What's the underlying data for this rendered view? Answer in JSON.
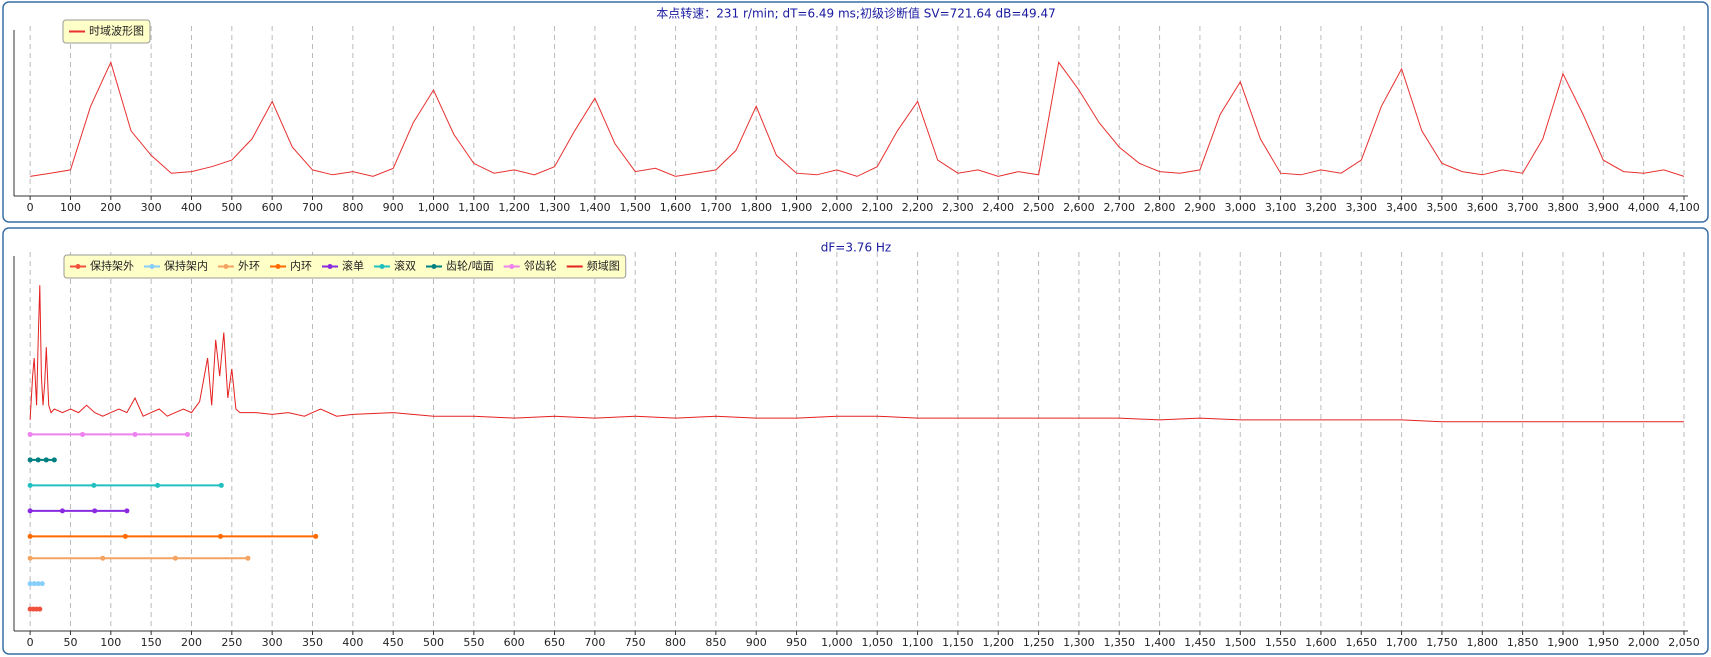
{
  "chart_data": [
    {
      "type": "line",
      "title": "本点转速：231 r/min; dT=6.49 ms;初级诊断值 SV=721.64 dB=49.47",
      "xlim": [
        -40,
        4110
      ],
      "ylim": [
        0,
        100
      ],
      "grid": true,
      "xticks": [
        0,
        100,
        200,
        300,
        400,
        500,
        600,
        700,
        800,
        900,
        {
          "value": 1000,
          "label": "1,000"
        },
        {
          "value": 1100,
          "label": "1,100"
        },
        {
          "value": 1200,
          "label": "1,200"
        },
        {
          "value": 1300,
          "label": "1,300"
        },
        {
          "value": 1400,
          "label": "1,400"
        },
        {
          "value": 1500,
          "label": "1,500"
        },
        {
          "value": 1600,
          "label": "1,600"
        },
        {
          "value": 1700,
          "label": "1,700"
        },
        {
          "value": 1800,
          "label": "1,800"
        },
        {
          "value": 1900,
          "label": "1,900"
        },
        {
          "value": 2000,
          "label": "2,000"
        },
        {
          "value": 2100,
          "label": "2,100"
        },
        {
          "value": 2200,
          "label": "2,200"
        },
        {
          "value": 2300,
          "label": "2,300"
        },
        {
          "value": 2400,
          "label": "2,400"
        },
        {
          "value": 2500,
          "label": "2,500"
        },
        {
          "value": 2600,
          "label": "2,600"
        },
        {
          "value": 2700,
          "label": "2,700"
        },
        {
          "value": 2800,
          "label": "2,800"
        },
        {
          "value": 2900,
          "label": "2,900"
        },
        {
          "value": 3000,
          "label": "3,000"
        },
        {
          "value": 3100,
          "label": "3,100"
        },
        {
          "value": 3200,
          "label": "3,200"
        },
        {
          "value": 3300,
          "label": "3,300"
        },
        {
          "value": 3400,
          "label": "3,400"
        },
        {
          "value": 3500,
          "label": "3,500"
        },
        {
          "value": 3600,
          "label": "3,600"
        },
        {
          "value": 3700,
          "label": "3,700"
        },
        {
          "value": 3800,
          "label": "3,800"
        },
        {
          "value": 3900,
          "label": "3,900"
        },
        {
          "value": 4000,
          "label": "4,000"
        },
        {
          "value": 4100,
          "label": "4,100"
        }
      ],
      "series": [
        {
          "name": "时域波形图",
          "color": "#e83030",
          "x": [
            0,
            50,
            100,
            150,
            200,
            250,
            300,
            350,
            400,
            450,
            500,
            550,
            600,
            650,
            700,
            750,
            800,
            850,
            900,
            950,
            1000,
            1050,
            1100,
            1150,
            1200,
            1250,
            1300,
            1350,
            1400,
            1450,
            1500,
            1550,
            1600,
            1650,
            1700,
            1750,
            1800,
            1850,
            1900,
            1950,
            2000,
            2050,
            2100,
            2150,
            2200,
            2250,
            2300,
            2350,
            2400,
            2450,
            2500,
            2550,
            2600,
            2650,
            2700,
            2750,
            2800,
            2850,
            2900,
            2950,
            3000,
            3050,
            3100,
            3150,
            3200,
            3250,
            3300,
            3350,
            3400,
            3450,
            3500,
            3550,
            3600,
            3650,
            3700,
            3750,
            3800,
            3850,
            3900,
            3950,
            4000,
            4050,
            4100
          ],
          "values": [
            12,
            14,
            16,
            55,
            82,
            40,
            25,
            14,
            15,
            18,
            22,
            35,
            58,
            30,
            16,
            13,
            15,
            12,
            17,
            45,
            65,
            38,
            20,
            14,
            16,
            13,
            18,
            40,
            60,
            32,
            15,
            17,
            12,
            14,
            16,
            28,
            55,
            25,
            14,
            13,
            16,
            12,
            18,
            40,
            58,
            22,
            14,
            16,
            12,
            15,
            13,
            82,
            65,
            45,
            30,
            20,
            15,
            14,
            16,
            50,
            70,
            35,
            14,
            13,
            16,
            14,
            22,
            55,
            78,
            40,
            20,
            15,
            13,
            16,
            14,
            35,
            75,
            50,
            22,
            15,
            14,
            16,
            12
          ]
        }
      ]
    },
    {
      "type": "line",
      "title": "dF=3.76 Hz",
      "xlim": [
        -20,
        2055
      ],
      "ylim": [
        0,
        100
      ],
      "grid": true,
      "xticks": [
        0,
        50,
        100,
        150,
        200,
        250,
        300,
        350,
        400,
        450,
        500,
        550,
        600,
        650,
        700,
        750,
        800,
        850,
        900,
        950,
        {
          "value": 1000,
          "label": "1,000"
        },
        {
          "value": 1050,
          "label": "1,050"
        },
        {
          "value": 1100,
          "label": "1,100"
        },
        {
          "value": 1150,
          "label": "1,150"
        },
        {
          "value": 1200,
          "label": "1,200"
        },
        {
          "value": 1250,
          "label": "1,250"
        },
        {
          "value": 1300,
          "label": "1,300"
        },
        {
          "value": 1350,
          "label": "1,350"
        },
        {
          "value": 1400,
          "label": "1,400"
        },
        {
          "value": 1450,
          "label": "1,450"
        },
        {
          "value": 1500,
          "label": "1,500"
        },
        {
          "value": 1550,
          "label": "1,550"
        },
        {
          "value": 1600,
          "label": "1,600"
        },
        {
          "value": 1650,
          "label": "1,650"
        },
        {
          "value": 1700,
          "label": "1,700"
        },
        {
          "value": 1750,
          "label": "1,750"
        },
        {
          "value": 1800,
          "label": "1,800"
        },
        {
          "value": 1850,
          "label": "1,850"
        },
        {
          "value": 1900,
          "label": "1,900"
        },
        {
          "value": 1950,
          "label": "1,950"
        },
        {
          "value": 2000,
          "label": "2,000"
        },
        {
          "value": 2050,
          "label": "2,050"
        }
      ],
      "series": [
        {
          "name": "保持架外",
          "color": "#f0503c",
          "markers": true,
          "x": [
            0,
            4,
            8,
            12
          ],
          "values": [
            6,
            6,
            6,
            6
          ]
        },
        {
          "name": "保持架内",
          "color": "#87cefa",
          "markers": true,
          "x": [
            0,
            5,
            10,
            15
          ],
          "values": [
            13,
            13,
            13,
            13
          ]
        },
        {
          "name": "外环",
          "color": "#f4a460",
          "markers": true,
          "x": [
            0,
            90,
            180,
            270
          ],
          "values": [
            20,
            20,
            20,
            20
          ]
        },
        {
          "name": "内环",
          "color": "#ff6a00",
          "markers": true,
          "x": [
            0,
            118,
            236,
            354
          ],
          "values": [
            26,
            26,
            26,
            26
          ]
        },
        {
          "name": "滚单",
          "color": "#8a2be2",
          "markers": true,
          "x": [
            0,
            40,
            80,
            120
          ],
          "values": [
            33,
            33,
            33,
            33
          ]
        },
        {
          "name": "滚双",
          "color": "#20c0c0",
          "markers": true,
          "x": [
            0,
            79,
            158,
            237
          ],
          "values": [
            40,
            40,
            40,
            40
          ]
        },
        {
          "name": "齿轮/啮面",
          "color": "#008080",
          "markers": true,
          "x": [
            0,
            10,
            20,
            30
          ],
          "values": [
            47,
            47,
            47,
            47
          ]
        },
        {
          "name": "邻齿轮",
          "color": "#ee82ee",
          "markers": true,
          "x": [
            0,
            65,
            130,
            195
          ],
          "values": [
            54,
            54,
            54,
            54
          ]
        },
        {
          "name": "频域图",
          "color": "#e52020",
          "markers": false,
          "x": [
            0,
            3,
            5,
            8,
            10,
            12,
            14,
            16,
            18,
            20,
            23,
            26,
            30,
            40,
            50,
            60,
            70,
            80,
            90,
            100,
            110,
            120,
            130,
            140,
            150,
            160,
            170,
            180,
            190,
            200,
            210,
            220,
            225,
            230,
            235,
            240,
            245,
            250,
            255,
            260,
            280,
            300,
            320,
            340,
            350,
            360,
            380,
            400,
            450,
            500,
            550,
            600,
            650,
            700,
            750,
            800,
            850,
            900,
            950,
            1000,
            1050,
            1100,
            1150,
            1200,
            1250,
            1300,
            1350,
            1400,
            1450,
            1500,
            1550,
            1600,
            1650,
            1700,
            1750,
            1800,
            1850,
            1900,
            1950,
            2000,
            2050
          ],
          "values": [
            58,
            70,
            75,
            62,
            80,
            95,
            70,
            62,
            68,
            78,
            62,
            60,
            61,
            60,
            61,
            60,
            62,
            60,
            59,
            60,
            61,
            60,
            64,
            59,
            60,
            61,
            59,
            60,
            61,
            60,
            63,
            75,
            62,
            80,
            70,
            82,
            64,
            72,
            61,
            60,
            60,
            59.5,
            60,
            59,
            60,
            61,
            59,
            59.5,
            60,
            59,
            59,
            58.5,
            59,
            58.5,
            59,
            58.5,
            59,
            58.5,
            58.5,
            59,
            59,
            58.5,
            58.5,
            58.5,
            58.5,
            58.5,
            58.5,
            58,
            58.5,
            58,
            58,
            58,
            58,
            58,
            57.5,
            57.5,
            57.5,
            57.5,
            57.5,
            57.5,
            57.5
          ]
        }
      ]
    }
  ]
}
